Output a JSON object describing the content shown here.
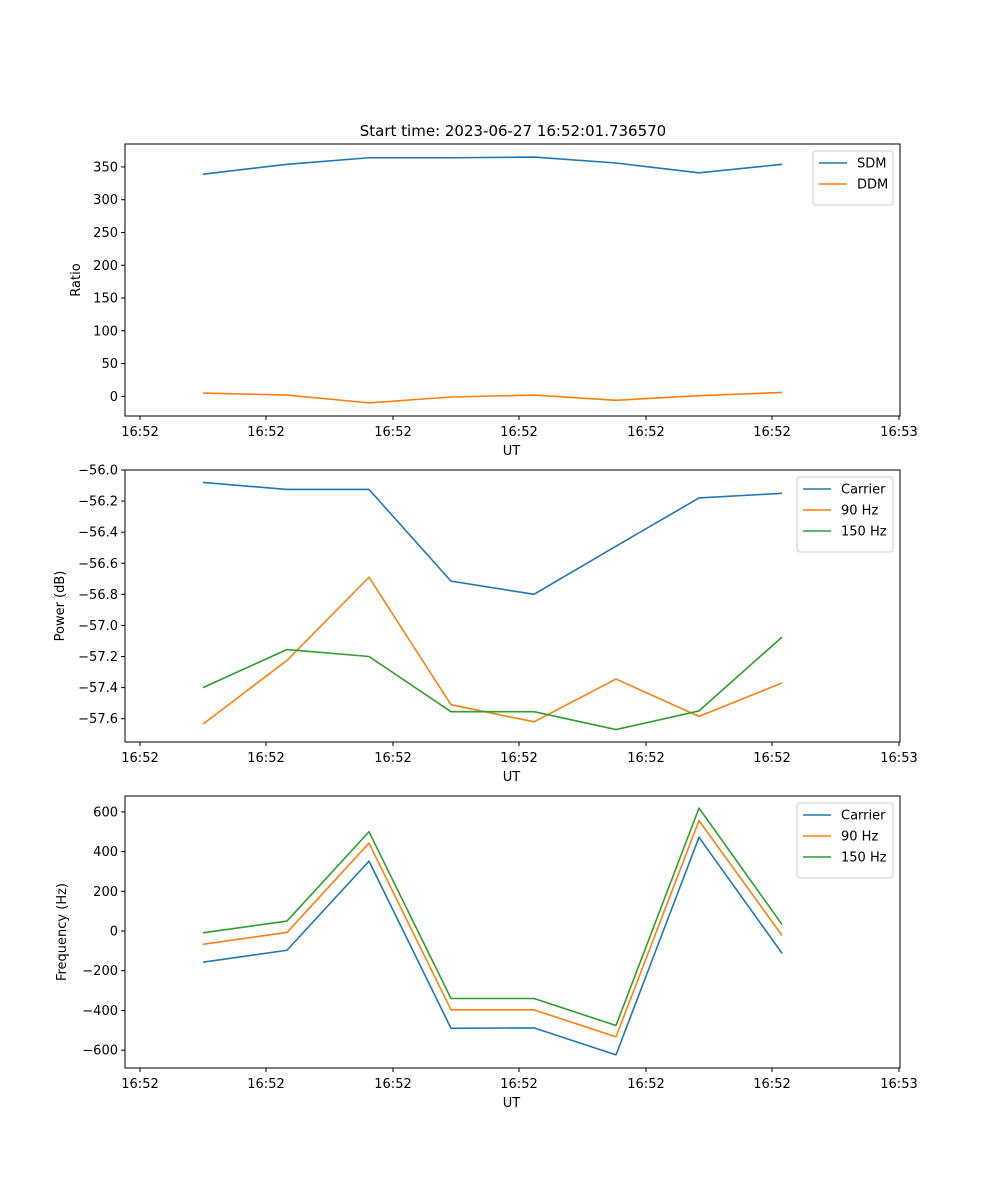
{
  "title": "Start time: 2023-06-27 16:52:01.736570",
  "chart_data": [
    {
      "type": "line",
      "xlabel": "UT",
      "ylabel": "Ratio",
      "x_tick_labels": [
        "16:52",
        "16:52",
        "16:52",
        "16:52",
        "16:52",
        "16:52",
        "16:53"
      ],
      "ylim": [
        -30,
        385
      ],
      "y_ticks": [
        0,
        50,
        100,
        150,
        200,
        250,
        300,
        350
      ],
      "y_tick_labels": [
        "0",
        "50",
        "100",
        "150",
        "200",
        "250",
        "300",
        "350"
      ],
      "legend_position": "top-right",
      "series": [
        {
          "name": "SDM",
          "color": "#1f77b4",
          "values": [
            339,
            354,
            364,
            364,
            365,
            356,
            341,
            354
          ]
        },
        {
          "name": "DDM",
          "color": "#ff7f0e",
          "values": [
            5,
            2,
            -10,
            -1,
            2,
            -6,
            1,
            6
          ]
        }
      ]
    },
    {
      "type": "line",
      "xlabel": "UT",
      "ylabel": "Power (dB)",
      "x_tick_labels": [
        "16:52",
        "16:52",
        "16:52",
        "16:52",
        "16:52",
        "16:52",
        "16:53"
      ],
      "ylim": [
        -57.75,
        -56.0
      ],
      "y_ticks": [
        -57.6,
        -57.4,
        -57.2,
        -57.0,
        -56.8,
        -56.6,
        -56.4,
        -56.2,
        -56.0
      ],
      "y_tick_labels": [
        "−57.6",
        "−57.4",
        "−57.2",
        "−57.0",
        "−56.8",
        "−56.6",
        "−56.4",
        "−56.2",
        "−56.0"
      ],
      "legend_position": "top-right",
      "series": [
        {
          "name": "Carrier",
          "color": "#1f77b4",
          "values": [
            -56.08,
            -56.125,
            -56.125,
            -56.715,
            -56.8,
            -56.49,
            -56.18,
            -56.15
          ]
        },
        {
          "name": "90 Hz",
          "color": "#ff7f0e",
          "values": [
            -57.635,
            -57.225,
            -56.69,
            -57.51,
            -57.62,
            -57.345,
            -57.585,
            -57.37
          ]
        },
        {
          "name": "150 Hz",
          "color": "#2ca02c",
          "values": [
            -57.4,
            -57.155,
            -57.2,
            -57.555,
            -57.555,
            -57.67,
            -57.55,
            -57.075
          ]
        }
      ]
    },
    {
      "type": "line",
      "xlabel": "UT",
      "ylabel": "Frequency (Hz)",
      "x_tick_labels": [
        "16:52",
        "16:52",
        "16:52",
        "16:52",
        "16:52",
        "16:52",
        "16:53"
      ],
      "ylim": [
        -690,
        680
      ],
      "y_ticks": [
        -600,
        -400,
        -200,
        0,
        200,
        400,
        600
      ],
      "y_tick_labels": [
        "−600",
        "−400",
        "−200",
        "0",
        "200",
        "400",
        "600"
      ],
      "legend_position": "top-right",
      "series": [
        {
          "name": "Carrier",
          "color": "#1f77b4",
          "values": [
            -157,
            -97,
            352,
            -490,
            -488,
            -624,
            472,
            -112
          ]
        },
        {
          "name": "90 Hz",
          "color": "#ff7f0e",
          "values": [
            -67,
            -7,
            443,
            -397,
            -397,
            -533,
            556,
            -22
          ]
        },
        {
          "name": "150 Hz",
          "color": "#2ca02c",
          "values": [
            -9,
            50,
            500,
            -340,
            -340,
            -476,
            619,
            33
          ]
        }
      ]
    }
  ]
}
